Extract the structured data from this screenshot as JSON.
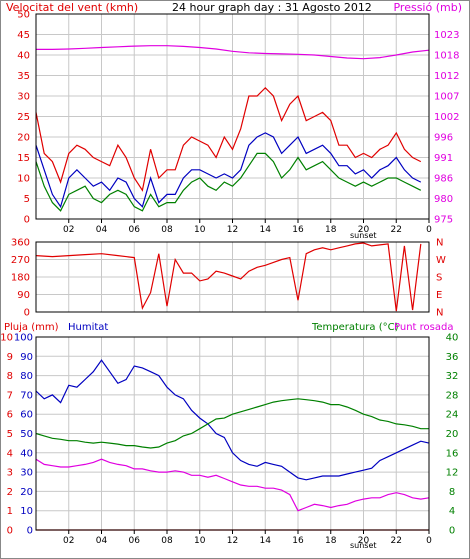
{
  "colors": {
    "background": "#ffffff",
    "frame": "#000000",
    "grid": "#c8c8c8",
    "wind_speed": "#e00000",
    "wind_avg": "#0000c0",
    "wind_gust_green": "#008000",
    "pressure": "#e000e0",
    "rain": "#e00000",
    "humidity": "#0000c0",
    "temperature": "#008000",
    "dew_point": "#e000e0"
  },
  "header": {
    "left": "Velocitat del vent (kmh)",
    "center": "24 hour graph day : 31 Agosto 2012",
    "right": "Pressió (mb)"
  },
  "panel3_header": {
    "rain": "Pluja (mm)",
    "humidity": "Humitat",
    "temperature": "Temperatura (°C)",
    "dew": "Punt rosada"
  },
  "x_axis": {
    "ticks": [
      "02",
      "04",
      "06",
      "08",
      "10",
      "12",
      "14",
      "16",
      "18",
      "20",
      "22",
      "0"
    ],
    "sunset_label": "sunset"
  },
  "chart_data": [
    {
      "type": "line",
      "title": "24 hour graph day : 31 Agosto 2012",
      "x_unit": "hour",
      "xlim": [
        0,
        24
      ],
      "left_axis": {
        "label": "Velocitat del vent (kmh)",
        "ylim": [
          0,
          50
        ],
        "ticks": [
          "0",
          "5",
          "10",
          "15",
          "20",
          "25",
          "30",
          "35",
          "40",
          "45",
          "50"
        ]
      },
      "right_axis": {
        "label": "Pressió (mb)",
        "ylim": [
          975,
          1030
        ],
        "ticks": [
          "975",
          "980",
          "986",
          "991",
          "996",
          "1002",
          "1007",
          "1012",
          "1018",
          "1023"
        ]
      },
      "series": [
        {
          "name": "Pressió (mb)",
          "axis": "right",
          "color": "pressure",
          "x": [
            0,
            1,
            2,
            3,
            4,
            5,
            6,
            7,
            8,
            9,
            10,
            11,
            12,
            13,
            14,
            15,
            16,
            17,
            18,
            19,
            20,
            21,
            22,
            23,
            24
          ],
          "values": [
            1020.5,
            1020.5,
            1020.6,
            1020.8,
            1021.0,
            1021.2,
            1021.4,
            1021.5,
            1021.5,
            1021.3,
            1021.0,
            1020.6,
            1020.0,
            1019.6,
            1019.4,
            1019.3,
            1019.2,
            1019.0,
            1018.6,
            1018.2,
            1018.0,
            1018.3,
            1019.0,
            1019.8,
            1020.3
          ]
        },
        {
          "name": "wind-max",
          "axis": "left",
          "color": "wind_speed",
          "x": [
            0,
            0.5,
            1,
            1.5,
            2,
            2.5,
            3,
            3.5,
            4,
            4.5,
            5,
            5.5,
            6,
            6.5,
            7,
            7.5,
            8,
            8.5,
            9,
            9.5,
            10,
            10.5,
            11,
            11.5,
            12,
            12.5,
            13,
            13.5,
            14,
            14.5,
            15,
            15.5,
            16,
            16.5,
            17,
            17.5,
            18,
            18.5,
            19,
            19.5,
            20,
            20.5,
            21,
            21.5,
            22,
            22.5,
            23,
            23.5
          ],
          "values": [
            26,
            16,
            14,
            9,
            16,
            18,
            17,
            15,
            14,
            13,
            18,
            15,
            10,
            7,
            17,
            10,
            12,
            12,
            18,
            20,
            19,
            18,
            15,
            20,
            17,
            22,
            30,
            30,
            32,
            30,
            24,
            28,
            30,
            24,
            25,
            26,
            24,
            18,
            18,
            15,
            16,
            15,
            17,
            18,
            21,
            17,
            15,
            14
          ]
        },
        {
          "name": "wind-average",
          "axis": "left",
          "color": "wind_avg",
          "x": [
            0,
            0.5,
            1,
            1.5,
            2,
            2.5,
            3,
            3.5,
            4,
            4.5,
            5,
            5.5,
            6,
            6.5,
            7,
            7.5,
            8,
            8.5,
            9,
            9.5,
            10,
            10.5,
            11,
            11.5,
            12,
            12.5,
            13,
            13.5,
            14,
            14.5,
            15,
            15.5,
            16,
            16.5,
            17,
            17.5,
            18,
            18.5,
            19,
            19.5,
            20,
            20.5,
            21,
            21.5,
            22,
            22.5,
            23,
            23.5
          ],
          "values": [
            18,
            12,
            6,
            3,
            10,
            12,
            10,
            8,
            9,
            7,
            10,
            9,
            5,
            3,
            10,
            4,
            6,
            6,
            10,
            12,
            12,
            11,
            10,
            11,
            10,
            12,
            18,
            20,
            21,
            20,
            16,
            18,
            20,
            16,
            17,
            18,
            16,
            13,
            13,
            11,
            12,
            10,
            12,
            13,
            15,
            12,
            10,
            9
          ]
        },
        {
          "name": "wind-gust",
          "axis": "left",
          "color": "wind_gust_green",
          "x": [
            0,
            0.5,
            1,
            1.5,
            2,
            2.5,
            3,
            3.5,
            4,
            4.5,
            5,
            5.5,
            6,
            6.5,
            7,
            7.5,
            8,
            8.5,
            9,
            9.5,
            10,
            10.5,
            11,
            11.5,
            12,
            12.5,
            13,
            13.5,
            14,
            14.5,
            15,
            15.5,
            16,
            16.5,
            17,
            17.5,
            18,
            18.5,
            19,
            19.5,
            20,
            20.5,
            21,
            21.5,
            22,
            22.5,
            23,
            23.5
          ],
          "values": [
            14,
            8,
            4,
            2,
            6,
            7,
            8,
            5,
            4,
            6,
            7,
            6,
            3,
            2,
            6,
            3,
            4,
            4,
            7,
            9,
            10,
            8,
            7,
            9,
            8,
            10,
            13,
            16,
            16,
            14,
            10,
            12,
            15,
            12,
            13,
            14,
            12,
            10,
            9,
            8,
            9,
            8,
            9,
            10,
            10,
            9,
            8,
            7
          ]
        }
      ]
    },
    {
      "type": "line",
      "title": "Wind direction",
      "x_unit": "hour",
      "xlim": [
        0,
        24
      ],
      "ylim": [
        0,
        360
      ],
      "y_ticks": [
        "0",
        "90",
        "180",
        "270",
        "360"
      ],
      "direction_labels": [
        "N",
        "W",
        "S",
        "E",
        "N"
      ],
      "series": [
        {
          "name": "direction",
          "color": "wind_speed",
          "x": [
            0,
            1,
            2,
            3,
            4,
            5,
            6,
            6.5,
            7,
            7.5,
            8,
            8.5,
            9,
            9.5,
            10,
            10.5,
            11,
            11.5,
            12,
            12.5,
            13,
            13.5,
            14,
            14.5,
            15,
            15.5,
            16,
            16.5,
            17,
            17.5,
            18,
            18.5,
            19,
            19.5,
            20,
            20.5,
            21,
            21.5,
            22,
            22.5,
            23,
            23.5
          ],
          "values": [
            290,
            285,
            290,
            295,
            300,
            290,
            280,
            20,
            100,
            300,
            30,
            270,
            200,
            200,
            160,
            170,
            210,
            200,
            185,
            170,
            210,
            230,
            240,
            255,
            270,
            280,
            60,
            300,
            320,
            330,
            320,
            330,
            340,
            350,
            355,
            340,
            345,
            350,
            5,
            340,
            10,
            350
          ]
        }
      ]
    },
    {
      "type": "line",
      "title": "",
      "x_unit": "hour",
      "xlim": [
        0,
        24
      ],
      "axes": {
        "rain": {
          "label": "Pluja (mm)",
          "ylim": [
            0,
            10
          ],
          "ticks": [
            "0",
            "1",
            "2",
            "3",
            "4",
            "5",
            "6",
            "7",
            "8",
            "9",
            "10"
          ]
        },
        "humidity": {
          "label": "Humitat",
          "ylim": [
            0,
            100
          ],
          "ticks": [
            "0",
            "10",
            "20",
            "30",
            "40",
            "50",
            "60",
            "70",
            "80",
            "90",
            "100"
          ]
        },
        "temperature": {
          "label": "Temperatura (°C)",
          "ylim": [
            0,
            40
          ],
          "ticks": [
            "0",
            "4",
            "8",
            "12",
            "16",
            "20",
            "24",
            "28",
            "32",
            "36",
            "40"
          ]
        },
        "dew": {
          "label": "Punt rosada",
          "ylim": [
            0,
            30
          ],
          "ticks": [
            "0",
            "3",
            "6",
            "9",
            "12",
            "15",
            "18",
            "21",
            "24",
            "27",
            "30"
          ]
        }
      },
      "series": [
        {
          "name": "Pluja (mm)",
          "axis": "rain",
          "color": "rain",
          "x": [
            0,
            24
          ],
          "values": [
            0,
            0
          ]
        },
        {
          "name": "Humitat",
          "axis": "humidity",
          "color": "humidity",
          "x": [
            0,
            0.5,
            1,
            1.5,
            2,
            2.5,
            3,
            3.5,
            4,
            4.5,
            5,
            5.5,
            6,
            6.5,
            7,
            7.5,
            8,
            8.5,
            9,
            9.5,
            10,
            10.5,
            11,
            11.5,
            12,
            12.5,
            13,
            13.5,
            14,
            14.5,
            15,
            15.5,
            16,
            16.5,
            17,
            17.5,
            18,
            18.5,
            19,
            19.5,
            20,
            20.5,
            21,
            21.5,
            22,
            22.5,
            23,
            23.5,
            24
          ],
          "values": [
            72,
            68,
            70,
            66,
            75,
            74,
            78,
            82,
            88,
            82,
            76,
            78,
            85,
            84,
            82,
            80,
            74,
            70,
            68,
            62,
            58,
            55,
            50,
            48,
            40,
            36,
            34,
            33,
            35,
            34,
            33,
            30,
            27,
            26,
            27,
            28,
            28,
            28,
            29,
            30,
            31,
            32,
            36,
            38,
            40,
            42,
            44,
            46,
            45
          ]
        },
        {
          "name": "Temperatura (°C)",
          "axis": "temperature",
          "color": "temperature",
          "x": [
            0,
            0.5,
            1,
            1.5,
            2,
            2.5,
            3,
            3.5,
            4,
            4.5,
            5,
            5.5,
            6,
            6.5,
            7,
            7.5,
            8,
            8.5,
            9,
            9.5,
            10,
            10.5,
            11,
            11.5,
            12,
            12.5,
            13,
            13.5,
            14,
            14.5,
            15,
            15.5,
            16,
            16.5,
            17,
            17.5,
            18,
            18.5,
            19,
            19.5,
            20,
            20.5,
            21,
            21.5,
            22,
            22.5,
            23,
            23.5,
            24
          ],
          "values": [
            20.0,
            19.5,
            19.0,
            18.8,
            18.5,
            18.5,
            18.2,
            18.0,
            18.2,
            18.0,
            17.8,
            17.5,
            17.5,
            17.2,
            17.0,
            17.2,
            18.0,
            18.5,
            19.5,
            20.0,
            21.0,
            22.0,
            23.0,
            23.2,
            24.0,
            24.5,
            25.0,
            25.5,
            26.0,
            26.5,
            26.8,
            27.0,
            27.2,
            27.0,
            26.8,
            26.5,
            26.0,
            26.0,
            25.5,
            24.8,
            24.0,
            23.5,
            22.8,
            22.5,
            22.0,
            21.8,
            21.5,
            21.0,
            21.0
          ]
        },
        {
          "name": "Punt rosada",
          "axis": "dew",
          "color": "dew_point",
          "x": [
            0,
            0.5,
            1,
            1.5,
            2,
            2.5,
            3,
            3.5,
            4,
            4.5,
            5,
            5.5,
            6,
            6.5,
            7,
            7.5,
            8,
            8.5,
            9,
            9.5,
            10,
            10.5,
            11,
            11.5,
            12,
            12.5,
            13,
            13.5,
            14,
            14.5,
            15,
            15.5,
            16,
            16.5,
            17,
            17.5,
            18,
            18.5,
            19,
            19.5,
            20,
            20.5,
            21,
            21.5,
            22,
            22.5,
            23,
            23.5,
            24
          ],
          "values": [
            11.0,
            10.2,
            10.0,
            9.8,
            9.8,
            10.0,
            10.2,
            10.5,
            11.0,
            10.5,
            10.2,
            10.0,
            9.5,
            9.5,
            9.2,
            9.0,
            9.0,
            9.2,
            9.0,
            8.5,
            8.5,
            8.2,
            8.5,
            8.0,
            7.5,
            7.0,
            6.8,
            6.8,
            6.5,
            6.5,
            6.2,
            5.5,
            3.0,
            3.5,
            4.0,
            3.8,
            3.5,
            3.8,
            4.0,
            4.5,
            4.8,
            5.0,
            5.0,
            5.5,
            5.8,
            5.5,
            5.0,
            4.8,
            5.0
          ]
        }
      ]
    }
  ]
}
